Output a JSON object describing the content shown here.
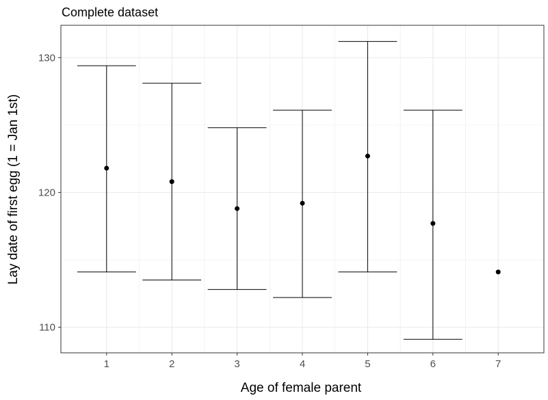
{
  "chart_data": {
    "type": "scatter",
    "title": "Complete dataset",
    "xlabel": "Age of female parent",
    "ylabel": "Lay date of first egg (1 = Jan 1st)",
    "x_ticks": [
      "1",
      "2",
      "3",
      "4",
      "5",
      "6",
      "7"
    ],
    "y_ticks": [
      110,
      120,
      130
    ],
    "xlim": [
      0.3,
      7.7
    ],
    "ylim": [
      108.1,
      132.4
    ],
    "grid": true,
    "legend": "none",
    "points": [
      {
        "x": 1,
        "y": 121.8,
        "ymin": 114.1,
        "ymax": 129.4
      },
      {
        "x": 2,
        "y": 120.8,
        "ymin": 113.5,
        "ymax": 128.1
      },
      {
        "x": 3,
        "y": 118.8,
        "ymin": 112.8,
        "ymax": 124.8
      },
      {
        "x": 4,
        "y": 119.2,
        "ymin": 112.2,
        "ymax": 126.1
      },
      {
        "x": 5,
        "y": 122.7,
        "ymin": 114.1,
        "ymax": 131.2
      },
      {
        "x": 6,
        "y": 117.7,
        "ymin": 109.1,
        "ymax": 126.1
      },
      {
        "x": 7,
        "y": 114.1,
        "ymin": null,
        "ymax": null
      }
    ],
    "colors": {
      "point": "#000000",
      "grid": "#ebebeb",
      "border": "#333333"
    }
  }
}
